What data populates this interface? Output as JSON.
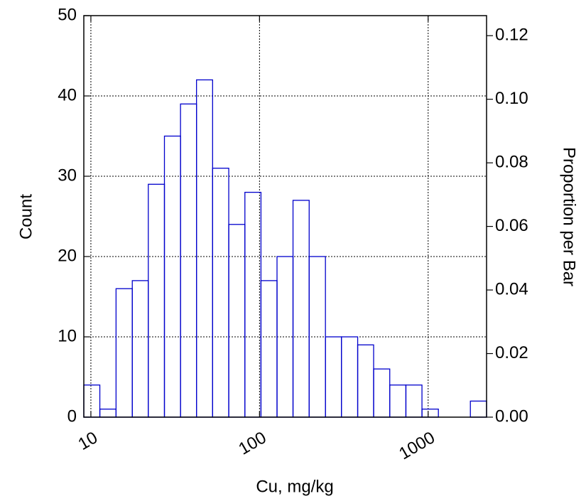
{
  "chart_data": {
    "type": "histogram",
    "x_label": "Cu, mg/kg",
    "y_label": "Count",
    "y2_label": "Proportion per Bar",
    "bins": [
      9.08,
      11.3,
      14.1,
      17.6,
      21.9,
      27.3,
      34.0,
      42.3,
      52.7,
      65.7,
      81.9,
      102,
      127,
      158,
      197,
      246,
      306,
      382,
      475,
      592,
      738,
      919,
      1150,
      1430,
      1780,
      2220
    ],
    "values": [
      4,
      1,
      16,
      17,
      29,
      35,
      39,
      42,
      31,
      24,
      28,
      17,
      20,
      27,
      20,
      10,
      10,
      9,
      6,
      4,
      4,
      1,
      0,
      0,
      2
    ],
    "color": "#0000cc",
    "x_log": true,
    "grid": true,
    "xlim": [
      9.08,
      2220
    ],
    "xticks": [
      10,
      100,
      1000
    ],
    "ylim": [
      0,
      50
    ],
    "yticks": [
      0,
      10,
      20,
      30,
      40,
      50
    ],
    "y2lim": [
      0,
      0.1263
    ],
    "y2ticks": [
      {
        "value": 0,
        "label": "0.00"
      },
      {
        "value": 0.02,
        "label": "0.02"
      },
      {
        "value": 0.04,
        "label": "0.04"
      },
      {
        "value": 0.06,
        "label": "0.06"
      },
      {
        "value": 0.08,
        "label": "0.08"
      },
      {
        "value": 0.1,
        "label": "0.10"
      },
      {
        "value": 0.12,
        "label": "0.12"
      }
    ]
  }
}
